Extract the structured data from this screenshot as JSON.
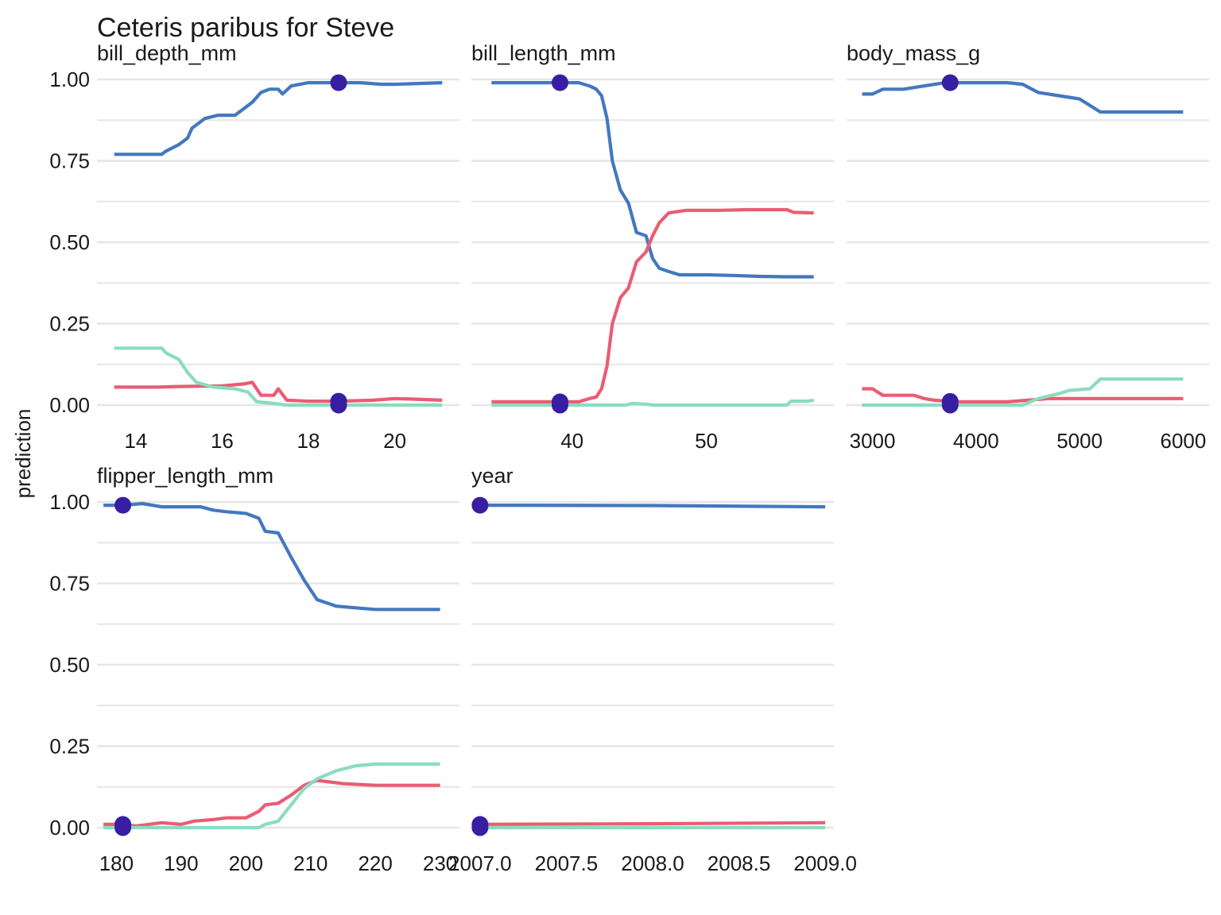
{
  "chart_data": {
    "type": "line",
    "title": "Ceteris paribus for Steve",
    "ylabel": "prediction",
    "ylim": [
      0,
      1
    ],
    "y_ticks": [
      "0.00",
      "0.25",
      "0.50",
      "0.75",
      "1.00"
    ],
    "grid": true,
    "colors": {
      "series_1": "#4378bf",
      "series_2": "#e95d72",
      "series_3": "#8bdcbe",
      "observation": "#371ea3",
      "grid": "#e6e6e6"
    },
    "panels": [
      {
        "title": "bill_depth_mm",
        "xlim": [
          13.1,
          21.5
        ],
        "x_ticks": [
          14,
          16,
          18,
          20
        ],
        "x_tick_labels": [
          "14",
          "16",
          "18",
          "20"
        ],
        "observation_x": 18.7,
        "series": [
          {
            "color": "#4378bf",
            "points": [
              [
                13.5,
                0.77
              ],
              [
                14.1,
                0.77
              ],
              [
                14.6,
                0.77
              ],
              [
                14.7,
                0.78
              ],
              [
                15.0,
                0.8
              ],
              [
                15.2,
                0.82
              ],
              [
                15.3,
                0.85
              ],
              [
                15.6,
                0.88
              ],
              [
                15.9,
                0.89
              ],
              [
                16.3,
                0.89
              ],
              [
                16.5,
                0.91
              ],
              [
                16.7,
                0.93
              ],
              [
                16.9,
                0.96
              ],
              [
                17.1,
                0.97
              ],
              [
                17.3,
                0.97
              ],
              [
                17.4,
                0.955
              ],
              [
                17.6,
                0.98
              ],
              [
                18.0,
                0.99
              ],
              [
                18.4,
                0.99
              ],
              [
                18.9,
                0.99
              ],
              [
                19.2,
                0.99
              ],
              [
                19.7,
                0.985
              ],
              [
                20.0,
                0.985
              ],
              [
                21.1,
                0.99
              ]
            ]
          },
          {
            "color": "#e95d72",
            "points": [
              [
                13.5,
                0.055
              ],
              [
                14.5,
                0.055
              ],
              [
                15.0,
                0.057
              ],
              [
                15.5,
                0.058
              ],
              [
                16.0,
                0.059
              ],
              [
                16.5,
                0.065
              ],
              [
                16.7,
                0.07
              ],
              [
                16.9,
                0.03
              ],
              [
                17.2,
                0.03
              ],
              [
                17.3,
                0.05
              ],
              [
                17.5,
                0.015
              ],
              [
                18.0,
                0.012
              ],
              [
                18.7,
                0.012
              ],
              [
                19.5,
                0.015
              ],
              [
                20.0,
                0.02
              ],
              [
                20.5,
                0.018
              ],
              [
                21.1,
                0.015
              ]
            ]
          },
          {
            "color": "#8bdcbe",
            "points": [
              [
                13.5,
                0.175
              ],
              [
                14.1,
                0.175
              ],
              [
                14.6,
                0.175
              ],
              [
                14.7,
                0.16
              ],
              [
                15.0,
                0.14
              ],
              [
                15.2,
                0.1
              ],
              [
                15.4,
                0.07
              ],
              [
                15.8,
                0.055
              ],
              [
                16.3,
                0.05
              ],
              [
                16.6,
                0.04
              ],
              [
                16.8,
                0.01
              ],
              [
                17.2,
                0.005
              ],
              [
                17.5,
                0.0
              ],
              [
                18.0,
                0.0
              ],
              [
                21.1,
                0.0
              ]
            ]
          }
        ]
      },
      {
        "title": "bill_length_mm",
        "xlim": [
          32.5,
          59.5
        ],
        "x_ticks": [
          40,
          50
        ],
        "x_tick_labels": [
          "40",
          "50"
        ],
        "observation_x": 39.1,
        "series": [
          {
            "color": "#4378bf",
            "points": [
              [
                34.0,
                0.99
              ],
              [
                40.5,
                0.99
              ],
              [
                41.3,
                0.98
              ],
              [
                41.8,
                0.97
              ],
              [
                42.2,
                0.95
              ],
              [
                42.6,
                0.88
              ],
              [
                43.0,
                0.75
              ],
              [
                43.6,
                0.66
              ],
              [
                44.2,
                0.62
              ],
              [
                44.8,
                0.53
              ],
              [
                45.5,
                0.52
              ],
              [
                46.0,
                0.45
              ],
              [
                46.5,
                0.42
              ],
              [
                47.2,
                0.41
              ],
              [
                48.0,
                0.4
              ],
              [
                50.0,
                0.4
              ],
              [
                52.0,
                0.398
              ],
              [
                54.0,
                0.395
              ],
              [
                56.0,
                0.394
              ],
              [
                58.0,
                0.394
              ]
            ]
          },
          {
            "color": "#e95d72",
            "points": [
              [
                34.0,
                0.01
              ],
              [
                40.5,
                0.01
              ],
              [
                41.3,
                0.02
              ],
              [
                41.8,
                0.025
              ],
              [
                42.2,
                0.05
              ],
              [
                42.6,
                0.12
              ],
              [
                43.0,
                0.25
              ],
              [
                43.6,
                0.33
              ],
              [
                44.2,
                0.36
              ],
              [
                44.8,
                0.44
              ],
              [
                45.5,
                0.47
              ],
              [
                46.0,
                0.52
              ],
              [
                46.5,
                0.56
              ],
              [
                47.2,
                0.59
              ],
              [
                48.5,
                0.598
              ],
              [
                51.0,
                0.598
              ],
              [
                53.0,
                0.6
              ],
              [
                56.0,
                0.6
              ],
              [
                56.5,
                0.592
              ],
              [
                58.0,
                0.59
              ]
            ]
          },
          {
            "color": "#8bdcbe",
            "points": [
              [
                34.0,
                0.0
              ],
              [
                44.0,
                0.0
              ],
              [
                44.5,
                0.005
              ],
              [
                45.5,
                0.003
              ],
              [
                46.0,
                0.0
              ],
              [
                56.0,
                0.0
              ],
              [
                56.3,
                0.012
              ],
              [
                57.5,
                0.012
              ],
              [
                58.0,
                0.015
              ]
            ]
          }
        ]
      },
      {
        "title": "body_mass_g",
        "xlim": [
          2750,
          6250
        ],
        "x_ticks": [
          3000,
          4000,
          5000,
          6000
        ],
        "x_tick_labels": [
          "3000",
          "4000",
          "5000",
          "6000"
        ],
        "observation_x": 3750,
        "series": [
          {
            "color": "#4378bf",
            "points": [
              [
                2900,
                0.955
              ],
              [
                3000,
                0.955
              ],
              [
                3100,
                0.97
              ],
              [
                3300,
                0.97
              ],
              [
                3500,
                0.98
              ],
              [
                3700,
                0.99
              ],
              [
                3900,
                0.99
              ],
              [
                4300,
                0.99
              ],
              [
                4450,
                0.985
              ],
              [
                4600,
                0.96
              ],
              [
                4800,
                0.95
              ],
              [
                5000,
                0.94
              ],
              [
                5100,
                0.92
              ],
              [
                5200,
                0.9
              ],
              [
                5500,
                0.9
              ],
              [
                6000,
                0.9
              ]
            ]
          },
          {
            "color": "#e95d72",
            "points": [
              [
                2900,
                0.05
              ],
              [
                3000,
                0.05
              ],
              [
                3100,
                0.03
              ],
              [
                3400,
                0.03
              ],
              [
                3500,
                0.02
              ],
              [
                3600,
                0.015
              ],
              [
                3800,
                0.01
              ],
              [
                4300,
                0.01
              ],
              [
                4500,
                0.015
              ],
              [
                4700,
                0.02
              ],
              [
                5200,
                0.02
              ],
              [
                6000,
                0.02
              ]
            ]
          },
          {
            "color": "#8bdcbe",
            "points": [
              [
                2900,
                0.0
              ],
              [
                4450,
                0.0
              ],
              [
                4600,
                0.02
              ],
              [
                4800,
                0.035
              ],
              [
                4900,
                0.045
              ],
              [
                5100,
                0.05
              ],
              [
                5200,
                0.08
              ],
              [
                5500,
                0.08
              ],
              [
                6000,
                0.08
              ]
            ]
          }
        ]
      },
      {
        "title": "flipper_length_mm",
        "xlim": [
          177,
          233
        ],
        "x_ticks": [
          180,
          190,
          200,
          210,
          220,
          230
        ],
        "x_tick_labels": [
          "180",
          "190",
          "200",
          "210",
          "220",
          "230"
        ],
        "observation_x": 181,
        "series": [
          {
            "color": "#4378bf",
            "points": [
              [
                178,
                0.99
              ],
              [
                181,
                0.99
              ],
              [
                184,
                0.995
              ],
              [
                187,
                0.985
              ],
              [
                190,
                0.985
              ],
              [
                193,
                0.985
              ],
              [
                195,
                0.975
              ],
              [
                197,
                0.97
              ],
              [
                200,
                0.965
              ],
              [
                202,
                0.95
              ],
              [
                203,
                0.91
              ],
              [
                205,
                0.905
              ],
              [
                207,
                0.83
              ],
              [
                209,
                0.76
              ],
              [
                211,
                0.7
              ],
              [
                214,
                0.68
              ],
              [
                217,
                0.675
              ],
              [
                220,
                0.67
              ],
              [
                225,
                0.67
              ],
              [
                230,
                0.67
              ]
            ]
          },
          {
            "color": "#e95d72",
            "points": [
              [
                178,
                0.01
              ],
              [
                181,
                0.01
              ],
              [
                183,
                0.005
              ],
              [
                185,
                0.01
              ],
              [
                187,
                0.015
              ],
              [
                190,
                0.01
              ],
              [
                192,
                0.02
              ],
              [
                195,
                0.025
              ],
              [
                197,
                0.03
              ],
              [
                200,
                0.03
              ],
              [
                202,
                0.05
              ],
              [
                203,
                0.07
              ],
              [
                205,
                0.075
              ],
              [
                207,
                0.1
              ],
              [
                209,
                0.13
              ],
              [
                211,
                0.145
              ],
              [
                215,
                0.135
              ],
              [
                220,
                0.13
              ],
              [
                230,
                0.13
              ]
            ]
          },
          {
            "color": "#8bdcbe",
            "points": [
              [
                178,
                0.0
              ],
              [
                202,
                0.0
              ],
              [
                203,
                0.01
              ],
              [
                205,
                0.02
              ],
              [
                207,
                0.07
              ],
              [
                209,
                0.12
              ],
              [
                211,
                0.15
              ],
              [
                214,
                0.175
              ],
              [
                217,
                0.19
              ],
              [
                220,
                0.195
              ],
              [
                225,
                0.195
              ],
              [
                230,
                0.195
              ]
            ]
          }
        ]
      },
      {
        "title": "year",
        "xlim": [
          2006.95,
          2009.05
        ],
        "x_ticks": [
          2007.0,
          2007.5,
          2008.0,
          2008.5,
          2009.0
        ],
        "x_tick_labels": [
          "2007.0",
          "2007.5",
          "2008.0",
          "2008.5",
          "2009.0"
        ],
        "observation_x": 2007.0,
        "series": [
          {
            "color": "#4378bf",
            "points": [
              [
                2007.0,
                0.99
              ],
              [
                2008.0,
                0.989
              ],
              [
                2009.0,
                0.985
              ]
            ]
          },
          {
            "color": "#e95d72",
            "points": [
              [
                2007.0,
                0.01
              ],
              [
                2008.0,
                0.012
              ],
              [
                2009.0,
                0.015
              ]
            ]
          },
          {
            "color": "#8bdcbe",
            "points": [
              [
                2007.0,
                0.0
              ],
              [
                2009.0,
                0.0
              ]
            ]
          }
        ]
      }
    ]
  }
}
